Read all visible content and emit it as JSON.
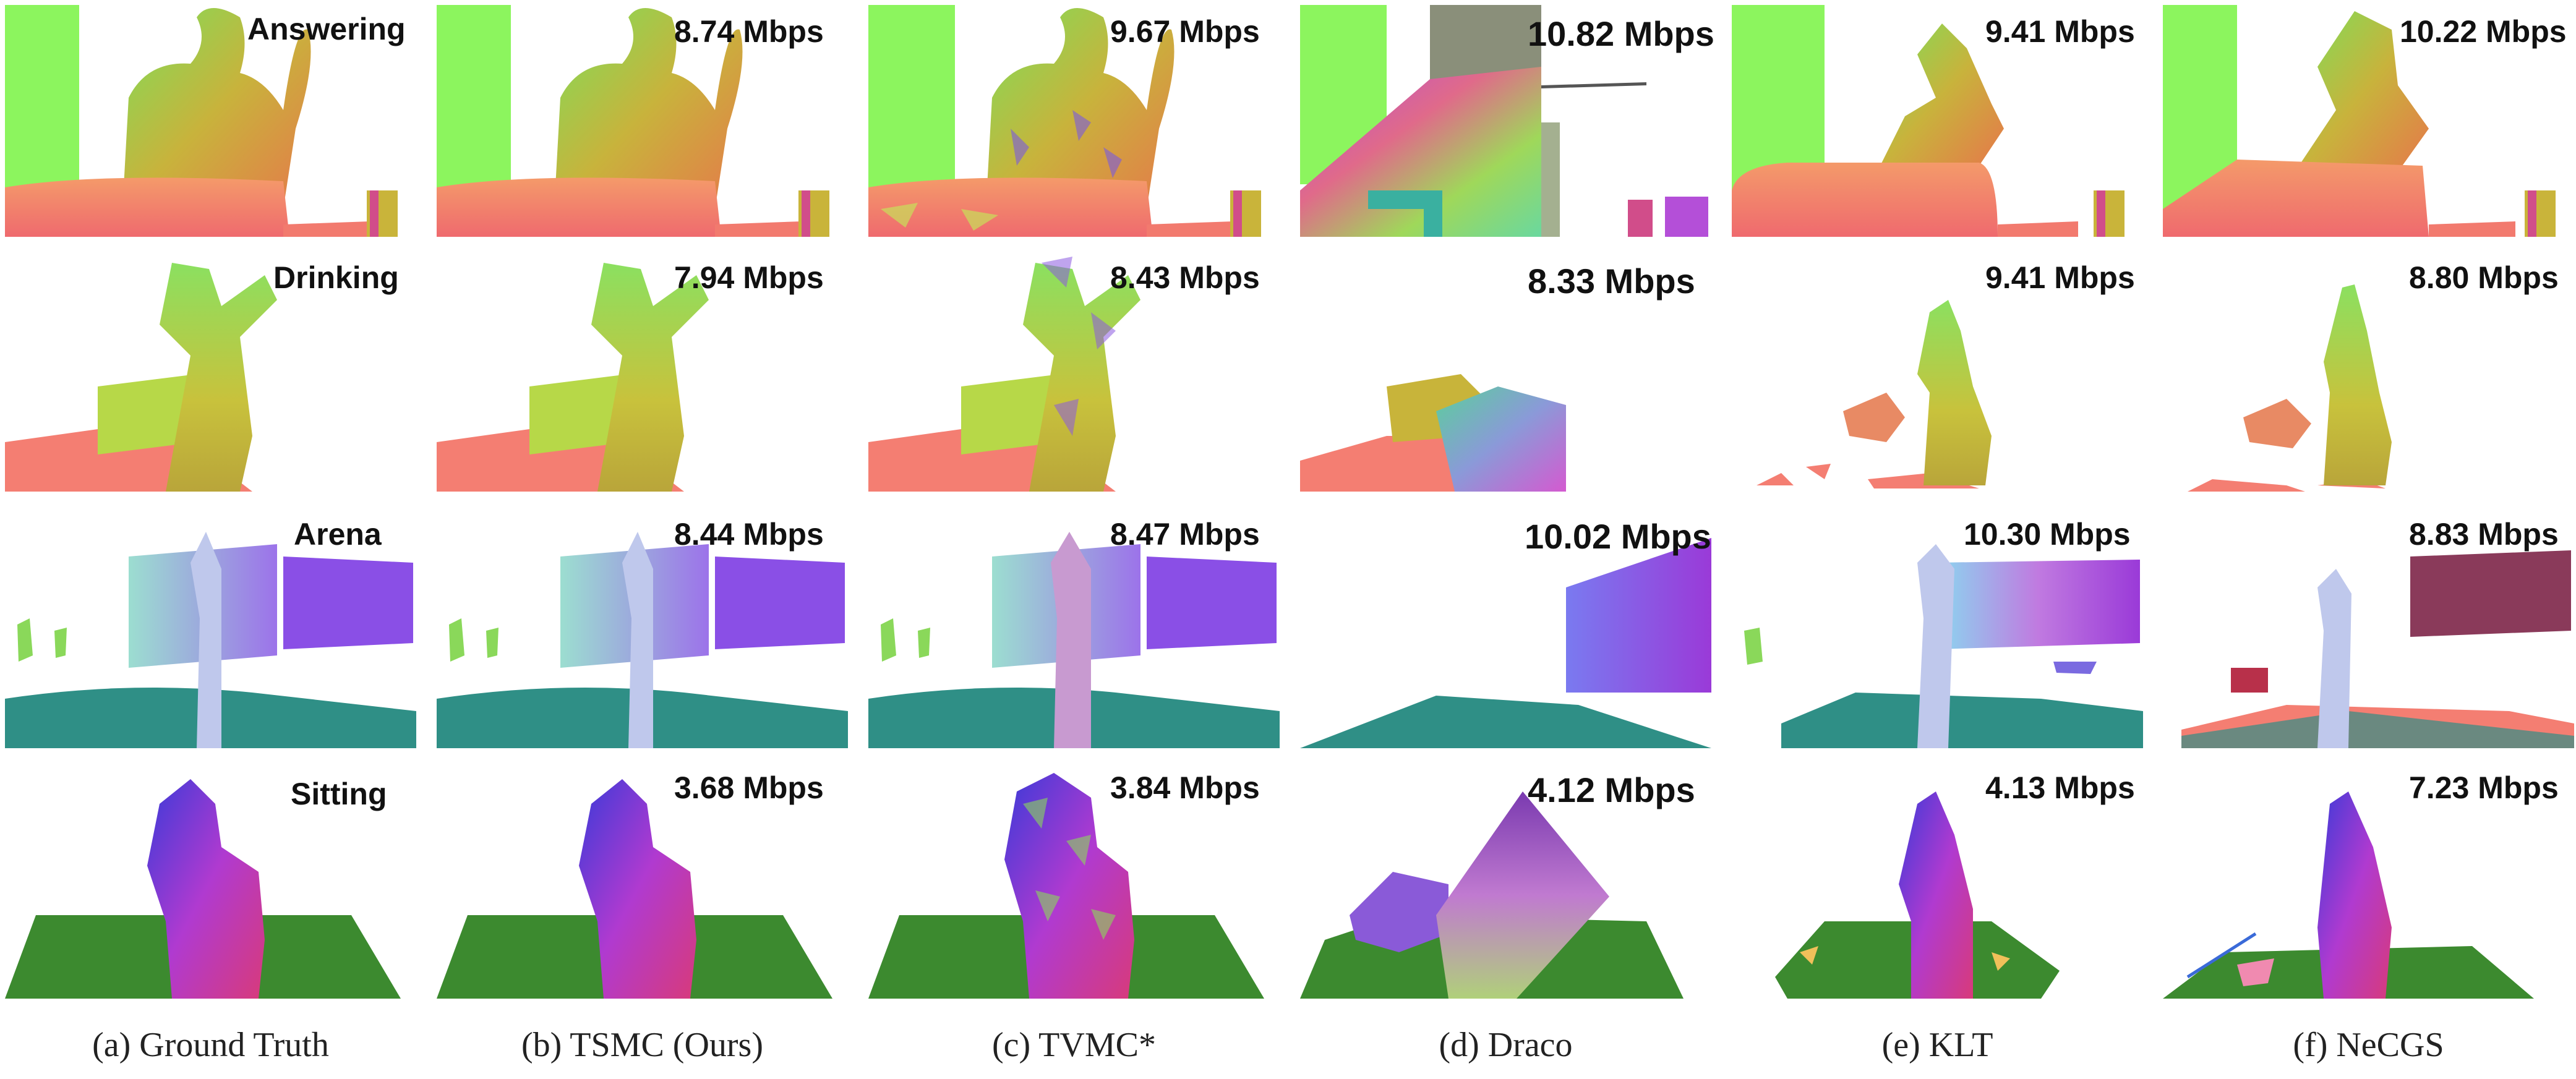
{
  "rows": [
    {
      "name": "Answering",
      "rates": [
        "",
        "8.74 Mbps",
        "9.67 Mbps",
        "10.82 Mbps",
        "9.41 Mbps",
        "10.22 Mbps"
      ]
    },
    {
      "name": "Drinking",
      "rates": [
        "",
        "7.94 Mbps",
        "8.43 Mbps",
        "8.33 Mbps",
        "9.41 Mbps",
        "8.80 Mbps"
      ]
    },
    {
      "name": "Arena",
      "rates": [
        "",
        "8.44 Mbps",
        "8.47 Mbps",
        "10.02 Mbps",
        "10.30 Mbps",
        "8.83 Mbps"
      ]
    },
    {
      "name": "Sitting",
      "rates": [
        "",
        "3.68 Mbps",
        "3.84 Mbps",
        "4.12 Mbps",
        "4.13 Mbps",
        "7.23 Mbps"
      ]
    }
  ],
  "columns": [
    {
      "caption": "(a) Ground Truth"
    },
    {
      "caption": "(b) TSMC (Ours)"
    },
    {
      "caption": "(c) TVMC*"
    },
    {
      "caption": "(d) Draco"
    },
    {
      "caption": "(e) KLT"
    },
    {
      "caption": "(f) NeCGS"
    }
  ],
  "colors": {
    "wall_green": "#8cf55e",
    "table_red": "#f27a6e",
    "body_yellow": "#b9c23a",
    "floor_teal": "#2f8f86",
    "purple": "#8a4fe6",
    "dark_green": "#3c8a2f"
  }
}
